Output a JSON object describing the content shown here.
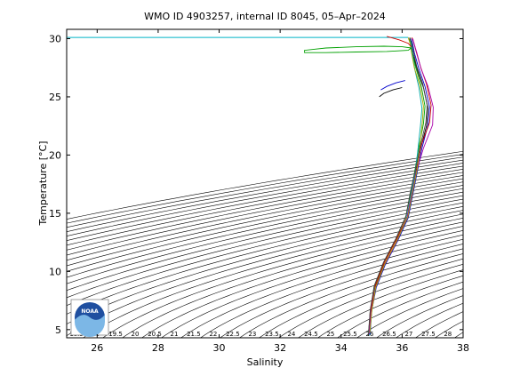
{
  "chart_data": {
    "type": "line",
    "title": "WMO ID 4903257, internal ID 8045, 05–Apr–2024",
    "xlabel": "Salinity",
    "ylabel": "Temperature [°C]",
    "xlim": [
      25,
      38
    ],
    "ylim": [
      4.3,
      30.8
    ],
    "xticks": [
      26,
      28,
      30,
      32,
      34,
      36,
      38
    ],
    "yticks": [
      5,
      10,
      15,
      20,
      25,
      30
    ],
    "grid": false,
    "background_contours": "density isopycnals",
    "reference_line": {
      "y": 30.1,
      "x_start": 25,
      "x_end": 36.2,
      "color": "#00b5c8"
    },
    "logo": {
      "text": "NOAA"
    },
    "profile_colors": [
      "#000000",
      "#0000cc",
      "#00a000",
      "#cc0000",
      "#00aaaa",
      "#aa00aa",
      "#aaaa00",
      "#444444"
    ],
    "series": [
      {
        "x": [
          34.9,
          34.95,
          35.1,
          35.4,
          35.8,
          36.15,
          36.3,
          36.45,
          36.6,
          36.8,
          36.85,
          36.7,
          36.5,
          36.35,
          36.3,
          36.25
        ],
        "y": [
          4.5,
          6.5,
          8.5,
          10.5,
          12.5,
          14.5,
          16.5,
          18.5,
          20.5,
          22.5,
          24.0,
          25.8,
          27.3,
          28.7,
          29.5,
          30.1
        ]
      },
      {
        "x": [
          34.95,
          35.0,
          35.15,
          35.45,
          35.85,
          36.2,
          36.35,
          36.5,
          36.65,
          36.85,
          36.9,
          36.75,
          36.55,
          36.4,
          36.35,
          36.3
        ],
        "y": [
          4.6,
          6.6,
          8.6,
          10.6,
          12.6,
          14.6,
          16.6,
          18.6,
          20.6,
          22.6,
          24.1,
          25.9,
          27.4,
          28.8,
          29.5,
          30.0
        ]
      },
      {
        "x": [
          34.9,
          34.97,
          35.08,
          35.38,
          35.78,
          36.12,
          36.28,
          36.42,
          36.55,
          36.7,
          36.75,
          36.62,
          36.45,
          36.32,
          36.28,
          36.22
        ],
        "y": [
          4.7,
          6.7,
          8.7,
          10.7,
          12.7,
          14.7,
          16.7,
          18.7,
          20.7,
          22.7,
          24.2,
          26.0,
          27.5,
          28.9,
          29.6,
          30.0
        ]
      },
      {
        "x": [
          34.92,
          34.98,
          35.12,
          35.42,
          35.82,
          36.18,
          36.32,
          36.48,
          36.62,
          36.9,
          36.95,
          36.8,
          36.6,
          36.45,
          36.38,
          36.32
        ],
        "y": [
          4.8,
          6.8,
          8.8,
          10.8,
          12.8,
          14.8,
          16.8,
          18.8,
          20.8,
          22.8,
          24.3,
          26.1,
          27.6,
          29.0,
          29.7,
          30.1
        ]
      },
      {
        "x": [
          34.93,
          35.0,
          35.11,
          35.41,
          35.81,
          36.14,
          36.29,
          36.43,
          36.52,
          36.6,
          36.65,
          36.55,
          36.42,
          36.34,
          36.3,
          36.27
        ],
        "y": [
          4.5,
          6.5,
          8.5,
          10.5,
          12.5,
          14.5,
          16.5,
          18.5,
          20.5,
          22.5,
          24.0,
          25.8,
          27.3,
          28.7,
          29.4,
          29.9
        ]
      },
      {
        "x": [
          34.91,
          34.99,
          35.13,
          35.43,
          35.83,
          36.16,
          36.31,
          36.47,
          36.7,
          37.0,
          37.02,
          36.85,
          36.62,
          36.48,
          36.4,
          36.35
        ],
        "y": [
          4.6,
          6.6,
          8.6,
          10.6,
          12.6,
          14.6,
          16.6,
          18.6,
          20.6,
          22.6,
          24.1,
          25.9,
          27.4,
          28.8,
          29.5,
          30.0
        ]
      },
      {
        "x": [
          34.94,
          35.01,
          35.14,
          35.44,
          35.84,
          36.19,
          36.34,
          36.49,
          36.58,
          36.66,
          36.7,
          36.58,
          36.4,
          36.3,
          36.26,
          36.2
        ],
        "y": [
          4.7,
          6.7,
          8.7,
          10.7,
          12.7,
          14.7,
          16.7,
          18.7,
          20.7,
          22.7,
          24.2,
          26.0,
          27.5,
          28.9,
          29.6,
          30.1
        ]
      },
      {
        "x": [
          34.9,
          34.96,
          35.09,
          35.39,
          35.79,
          36.13,
          36.27,
          36.44,
          36.6,
          36.78,
          36.82,
          36.68,
          36.48,
          36.36,
          36.31,
          36.24
        ],
        "y": [
          4.8,
          6.8,
          8.8,
          10.8,
          12.8,
          14.8,
          16.8,
          18.8,
          20.8,
          22.8,
          24.3,
          26.1,
          27.6,
          29.0,
          29.7,
          30.0
        ]
      },
      {
        "x": [
          36.0,
          35.7,
          35.4,
          35.25
        ],
        "y": [
          25.8,
          25.6,
          25.3,
          25.0
        ]
      },
      {
        "x": [
          36.1,
          35.8,
          35.5,
          35.3
        ],
        "y": [
          26.4,
          26.2,
          25.9,
          25.6
        ]
      },
      {
        "x": [
          36.3,
          36.0,
          35.4,
          34.5,
          33.5,
          32.8,
          32.8,
          33.5,
          34.5,
          35.5,
          36.2,
          36.3
        ],
        "y": [
          29.2,
          29.3,
          29.35,
          29.3,
          29.2,
          29.0,
          28.8,
          28.8,
          28.85,
          28.9,
          29.0,
          29.2
        ]
      },
      {
        "x": [
          35.5,
          35.9,
          36.2,
          36.3
        ],
        "y": [
          30.2,
          29.9,
          29.6,
          29.3
        ]
      }
    ]
  }
}
